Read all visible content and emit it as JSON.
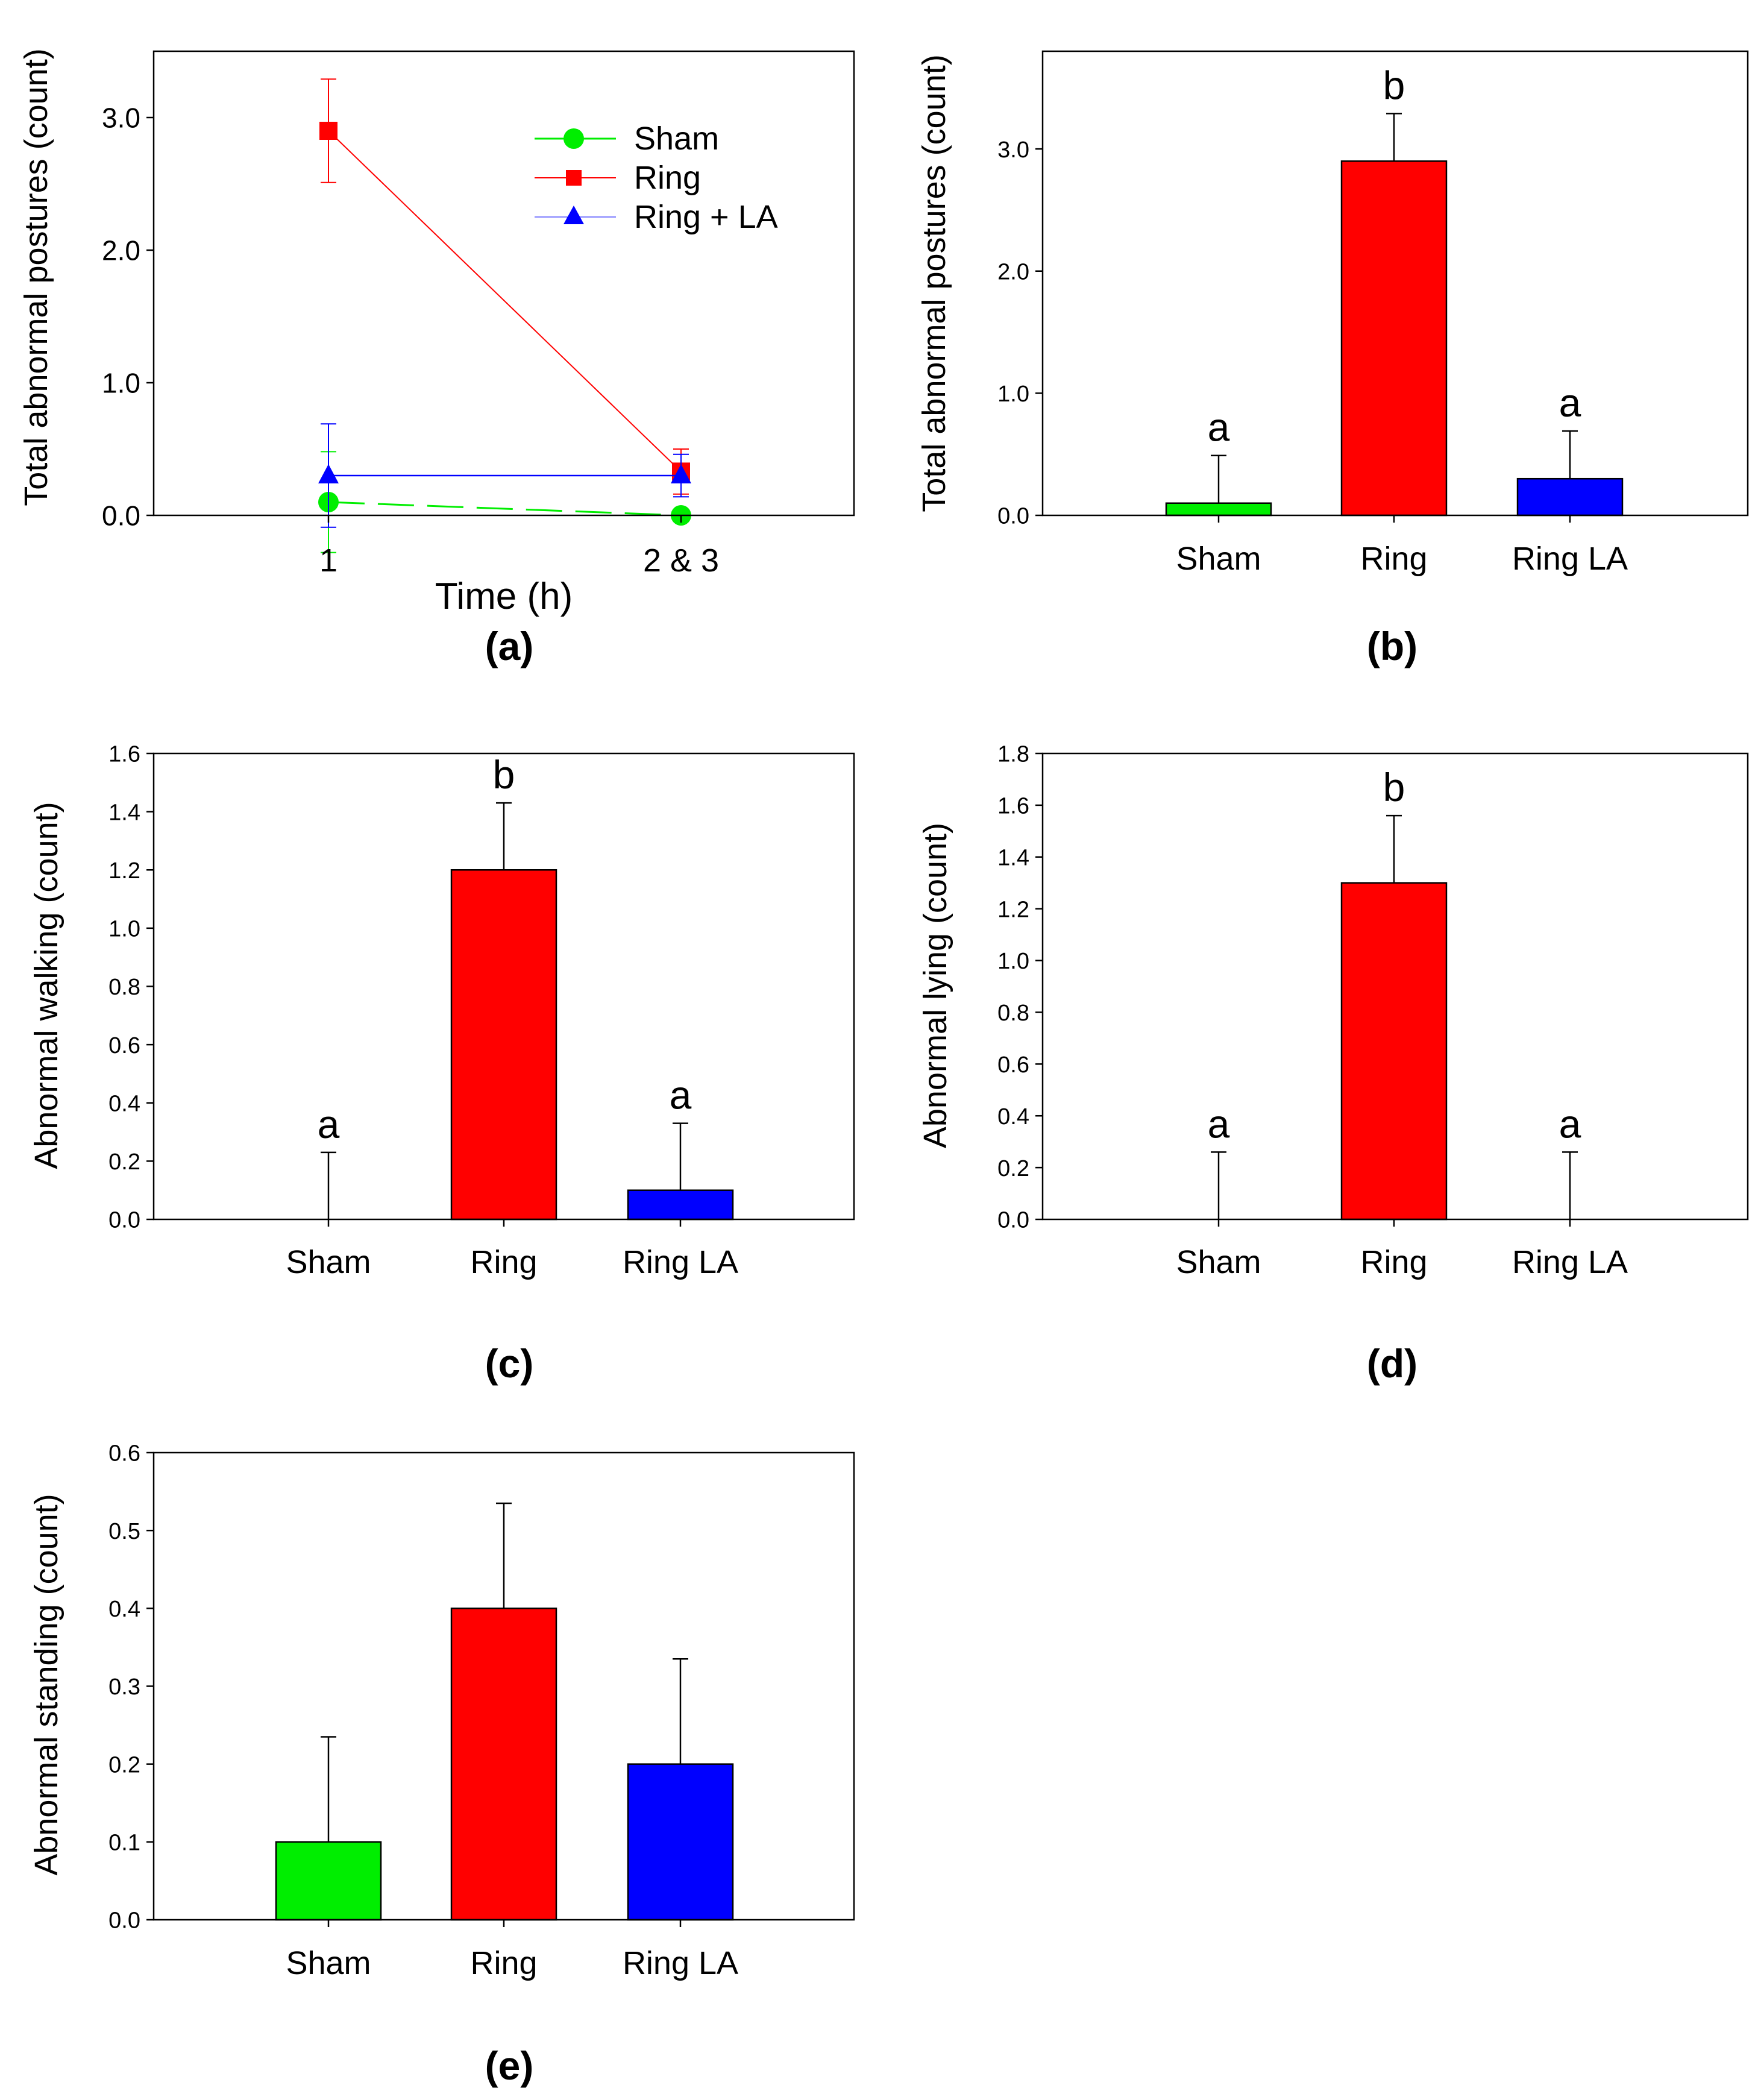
{
  "panel_labels": {
    "a": "(a)",
    "b": "(b)",
    "c": "(c)",
    "d": "(d)",
    "e": "(e)"
  },
  "colors": {
    "Sham": "#00ee00",
    "Ring": "#ff0000",
    "Ring LA": "#0000ff",
    "Ring + LA": "#0000ff"
  },
  "chart_data": [
    {
      "panel": "a",
      "type": "line",
      "xlabel": "Time (h)",
      "ylabel": "Total abnormal postures (count)",
      "categories": [
        "1",
        "2 & 3"
      ],
      "ylim": [
        0,
        3.5
      ],
      "yticks": [
        0,
        1,
        2,
        3
      ],
      "ytick_labels": [
        "0.0",
        "1.0",
        "2.0",
        "3.0"
      ],
      "series": [
        {
          "name": "Sham",
          "marker": "circle",
          "dashed": true,
          "values": [
            0.1,
            0.0
          ],
          "errors": [
            0.38,
            0.0
          ]
        },
        {
          "name": "Ring",
          "marker": "square",
          "dashed": false,
          "values": [
            2.9,
            0.33
          ],
          "errors": [
            0.39,
            0.17
          ]
        },
        {
          "name": "Ring + LA",
          "marker": "triangle",
          "dashed": false,
          "values": [
            0.3,
            0.3
          ],
          "errors": [
            0.39,
            0.16
          ]
        }
      ],
      "legend": [
        "Sham",
        "Ring",
        "Ring + LA"
      ]
    },
    {
      "panel": "b",
      "type": "bar",
      "ylabel": "Total abnormal postures (count)",
      "categories": [
        "Sham",
        "Ring",
        "Ring LA"
      ],
      "values": [
        0.1,
        2.9,
        0.3
      ],
      "errors": [
        0.39,
        0.39,
        0.39
      ],
      "letters": [
        "a",
        "b",
        "a"
      ],
      "ylim": [
        0,
        3.8
      ],
      "yticks": [
        0,
        1,
        2,
        3
      ],
      "ytick_labels": [
        "0.0",
        "1.0",
        "2.0",
        "3.0"
      ]
    },
    {
      "panel": "c",
      "type": "bar",
      "ylabel": "Abnormal walking (count)",
      "categories": [
        "Sham",
        "Ring",
        "Ring LA"
      ],
      "values": [
        0.0,
        1.2,
        0.1
      ],
      "errors": [
        0.23,
        0.23,
        0.23
      ],
      "letters": [
        "a",
        "b",
        "a"
      ],
      "ylim": [
        0,
        1.6
      ],
      "yticks": [
        0,
        0.2,
        0.4,
        0.6,
        0.8,
        1.0,
        1.2,
        1.4,
        1.6
      ],
      "ytick_labels": [
        "0.0",
        "0.2",
        "0.4",
        "0.6",
        "0.8",
        "1.0",
        "1.2",
        "1.4",
        "1.6"
      ]
    },
    {
      "panel": "d",
      "type": "bar",
      "ylabel": "Abnormal lying (count)",
      "categories": [
        "Sham",
        "Ring",
        "Ring LA"
      ],
      "values": [
        0.0,
        1.3,
        0.0
      ],
      "errors": [
        0.26,
        0.26,
        0.26
      ],
      "letters": [
        "a",
        "b",
        "a"
      ],
      "ylim": [
        0,
        1.8
      ],
      "yticks": [
        0,
        0.2,
        0.4,
        0.6,
        0.8,
        1.0,
        1.2,
        1.4,
        1.6,
        1.8
      ],
      "ytick_labels": [
        "0.0",
        "0.2",
        "0.4",
        "0.6",
        "0.8",
        "1.0",
        "1.2",
        "1.4",
        "1.6",
        "1.8"
      ]
    },
    {
      "panel": "e",
      "type": "bar",
      "ylabel": "Abnormal standing (count)",
      "categories": [
        "Sham",
        "Ring",
        "Ring LA"
      ],
      "values": [
        0.1,
        0.4,
        0.2
      ],
      "errors": [
        0.135,
        0.135,
        0.135
      ],
      "letters": [],
      "ylim": [
        0,
        0.6
      ],
      "yticks": [
        0,
        0.1,
        0.2,
        0.3,
        0.4,
        0.5,
        0.6
      ],
      "ytick_labels": [
        "0.0",
        "0.1",
        "0.2",
        "0.3",
        "0.4",
        "0.5",
        "0.6"
      ]
    }
  ]
}
